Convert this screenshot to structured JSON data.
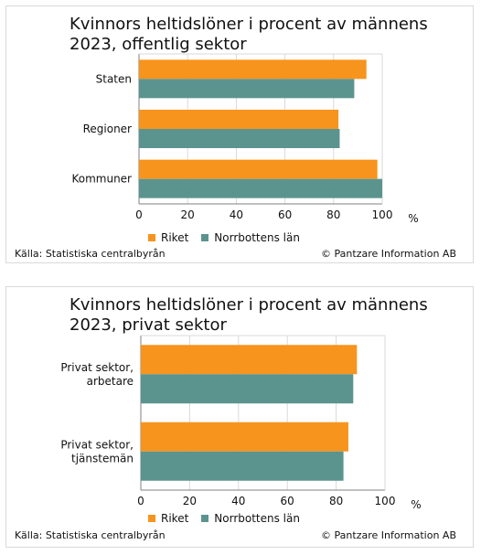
{
  "colors": {
    "riket": "#f7941d",
    "norrbotten": "#5b948f",
    "grid": "#d9d9d9",
    "axis": "#808080"
  },
  "source_label": "Källa: Statistiska centralbyrån",
  "copyright_label": "© Pantzare Information AB",
  "chart_data": [
    {
      "type": "bar",
      "orientation": "horizontal",
      "title": "Kvinnors heltidslöner i procent av männens\n2023, offentlig sektor",
      "categories": [
        "Staten",
        "Regioner",
        "Kommuner"
      ],
      "series": [
        {
          "name": "Riket",
          "values": [
            93.5,
            82,
            98
          ]
        },
        {
          "name": "Norrbottens län",
          "values": [
            88.5,
            82.5,
            100
          ]
        }
      ],
      "xlim": [
        0,
        100
      ],
      "xticks": [
        "0",
        "20",
        "40",
        "60",
        "80",
        "100"
      ],
      "xunit": "%",
      "grid": true,
      "legend": "bottom"
    },
    {
      "type": "bar",
      "orientation": "horizontal",
      "title": "Kvinnors heltidslöner i procent av männens\n2023, privat sektor",
      "categories": [
        "Privat sektor,\narbetare",
        "Privat sektor,\ntjänstemän"
      ],
      "series": [
        {
          "name": "Riket",
          "values": [
            88.5,
            85
          ]
        },
        {
          "name": "Norrbottens län",
          "values": [
            87,
            83
          ]
        }
      ],
      "xlim": [
        0,
        100
      ],
      "xticks": [
        "0",
        "20",
        "40",
        "60",
        "80",
        "100"
      ],
      "xunit": "%",
      "grid": true,
      "legend": "bottom"
    }
  ]
}
